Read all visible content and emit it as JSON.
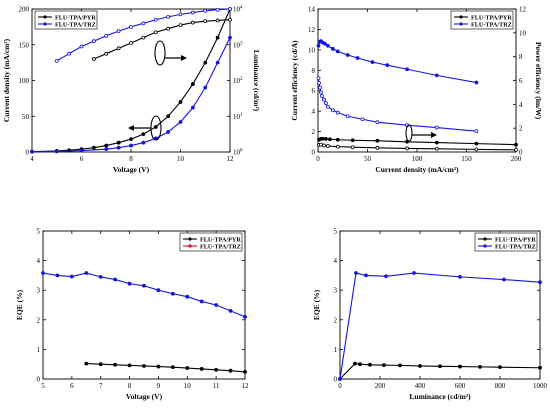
{
  "chart_data": [
    {
      "type": "line",
      "xlabel": "Voltage (V)",
      "ylabel": "Current density (mA/cm²)",
      "y2label": "Luminance (cd/m²)",
      "xlim": [
        4,
        12
      ],
      "ylim": [
        0,
        200
      ],
      "xticks": [
        "4",
        "6",
        "8",
        "10",
        "12"
      ],
      "yticks": [
        "0",
        "50",
        "100",
        "150",
        "200"
      ],
      "y2ticks_exp": [
        "0",
        "1",
        "2",
        "3",
        "4"
      ],
      "legend": [
        "FLU-TPA/PYR",
        "FLU-TPA/TRZ"
      ],
      "legend_position": "top-left",
      "series": [
        {
          "name": "FLU-TPA/PYR",
          "axis": "left",
          "filled": true,
          "color": "#000000",
          "x": [
            4.0,
            5.0,
            5.5,
            6.0,
            6.5,
            7.0,
            7.5,
            8.0,
            8.5,
            9.0,
            9.5,
            10.0,
            10.5,
            11.0,
            11.5,
            12.0
          ],
          "y": [
            0.5,
            1.5,
            2.5,
            4,
            6,
            9,
            13,
            18,
            25,
            35,
            50,
            70,
            95,
            125,
            160,
            200
          ]
        },
        {
          "name": "FLU-TPA/PYR",
          "axis": "right",
          "filled": false,
          "color": "#000000",
          "x": [
            6.5,
            7.0,
            7.5,
            8.0,
            8.5,
            9.0,
            9.5,
            10.0,
            10.5,
            11.0,
            11.5,
            12.0
          ],
          "y": [
            2.6,
            2.75,
            2.9,
            3.05,
            3.2,
            3.35,
            3.45,
            3.55,
            3.62,
            3.66,
            3.68,
            3.7
          ]
        },
        {
          "name": "FLU-TPA/TRZ",
          "axis": "left",
          "filled": true,
          "color": "#1515e0",
          "x": [
            4.0,
            5.0,
            6.0,
            7.0,
            7.5,
            8.0,
            8.5,
            9.0,
            9.5,
            10.0,
            10.5,
            11.0,
            11.5,
            12.0
          ],
          "y": [
            0.3,
            0.8,
            2,
            4,
            6,
            9,
            13,
            19,
            28,
            42,
            62,
            90,
            125,
            160
          ]
        },
        {
          "name": "FLU-TPA/TRZ",
          "axis": "right",
          "filled": false,
          "color": "#1515e0",
          "x": [
            5.0,
            5.5,
            6.0,
            6.5,
            7.0,
            7.5,
            8.0,
            8.5,
            9.0,
            9.5,
            10.0,
            10.5,
            11.0,
            11.5,
            12.0
          ],
          "y": [
            2.55,
            2.75,
            2.95,
            3.1,
            3.25,
            3.38,
            3.5,
            3.6,
            3.7,
            3.78,
            3.85,
            3.9,
            3.95,
            3.98,
            4.0
          ]
        }
      ]
    },
    {
      "type": "line",
      "xlabel": "Current density (mA/cm²)",
      "ylabel": "Current efficiency (cd/A)",
      "y2label": "Power efficiency (lm/W)",
      "xlim": [
        0,
        200
      ],
      "ylim": [
        0,
        14
      ],
      "y2lim": [
        0,
        12
      ],
      "xticks": [
        "0",
        "50",
        "100",
        "150",
        "200"
      ],
      "yticks": [
        "0",
        "2",
        "4",
        "6",
        "8",
        "10",
        "12",
        "14"
      ],
      "y2ticks": [
        "0",
        "2",
        "4",
        "6",
        "8",
        "10",
        "12"
      ],
      "legend": [
        "FLU-TPA/PYR",
        "FLU-TPA/TRZ"
      ],
      "legend_position": "top-right",
      "series": [
        {
          "name": "FLU-TPA/PYR",
          "axis": "left",
          "filled": true,
          "color": "#000000",
          "x": [
            1,
            3,
            5,
            8,
            12,
            20,
            35,
            60,
            90,
            120,
            160,
            200
          ],
          "y": [
            1.2,
            1.3,
            1.3,
            1.28,
            1.25,
            1.2,
            1.15,
            1.1,
            1.0,
            0.92,
            0.82,
            0.72
          ]
        },
        {
          "name": "FLU-TPA/PYR",
          "axis": "right",
          "filled": false,
          "color": "#000000",
          "x": [
            1,
            3,
            6,
            10,
            20,
            35,
            60,
            90,
            120,
            160,
            200
          ],
          "y": [
            0.6,
            0.62,
            0.55,
            0.5,
            0.45,
            0.4,
            0.35,
            0.3,
            0.27,
            0.22,
            0.18
          ]
        },
        {
          "name": "FLU-TPA/TRZ",
          "axis": "left",
          "filled": true,
          "color": "#1515e0",
          "x": [
            0.5,
            2,
            3,
            5,
            7,
            10,
            15,
            20,
            30,
            40,
            55,
            70,
            90,
            120,
            160
          ],
          "y": [
            10.4,
            10.8,
            10.85,
            10.7,
            10.6,
            10.4,
            10.1,
            9.85,
            9.5,
            9.2,
            8.8,
            8.5,
            8.1,
            7.5,
            6.8
          ]
        },
        {
          "name": "FLU-TPA/TRZ",
          "axis": "right",
          "filled": false,
          "color": "#1515e0",
          "x": [
            0.5,
            1,
            2,
            3,
            4,
            6,
            8,
            10,
            15,
            20,
            30,
            45,
            60,
            90,
            120,
            160
          ],
          "y": [
            6.2,
            5.8,
            5.4,
            5.0,
            4.7,
            4.4,
            4.1,
            3.8,
            3.5,
            3.3,
            3.0,
            2.75,
            2.5,
            2.25,
            2.05,
            1.75
          ]
        }
      ]
    },
    {
      "type": "line",
      "xlabel": "Voltage (V)",
      "ylabel": "EQE (%)",
      "xlim": [
        5,
        12
      ],
      "ylim": [
        0,
        5
      ],
      "xticks": [
        "5",
        "6",
        "7",
        "8",
        "9",
        "10",
        "11",
        "12"
      ],
      "yticks": [
        "0",
        "1",
        "2",
        "3",
        "4",
        "5"
      ],
      "legend": [
        "FLU-TPA/PYR",
        "FLU-TPA/TRZ"
      ],
      "legend_colors": [
        "#000000",
        "#e01010"
      ],
      "legend_position": "top-right",
      "series": [
        {
          "name": "FLU-TPA/PYR",
          "color": "#000000",
          "x": [
            6.5,
            7.0,
            7.5,
            8.0,
            8.5,
            9.0,
            9.5,
            10.0,
            10.5,
            11.0,
            11.5,
            12.0
          ],
          "y": [
            0.52,
            0.5,
            0.48,
            0.46,
            0.44,
            0.42,
            0.4,
            0.37,
            0.34,
            0.31,
            0.28,
            0.24
          ]
        },
        {
          "name": "",
          "color": "#1515e0",
          "x": [
            5.0,
            5.5,
            6.0,
            6.5,
            7.0,
            7.5,
            8.0,
            8.5,
            9.0,
            9.5,
            10.0,
            10.5,
            11.0,
            11.5,
            12.0
          ],
          "y": [
            3.58,
            3.5,
            3.46,
            3.58,
            3.45,
            3.36,
            3.22,
            3.15,
            3.0,
            2.88,
            2.78,
            2.62,
            2.5,
            2.3,
            2.1
          ]
        }
      ]
    },
    {
      "type": "line",
      "xlabel": "Luminance (cd/m²)",
      "ylabel": "EQE (%)",
      "xlim": [
        0,
        1000
      ],
      "ylim": [
        0,
        5
      ],
      "xticks": [
        "0",
        "200",
        "400",
        "600",
        "800",
        "1000"
      ],
      "yticks": [
        "0",
        "1",
        "2",
        "3",
        "4",
        "5"
      ],
      "legend": [
        "FLU-TPA/PYR",
        "FLU-TPA/TRZ"
      ],
      "legend_position": "top-right",
      "series": [
        {
          "name": "FLU-TPA/PYR",
          "color": "#000000",
          "x": [
            0,
            75,
            100,
            150,
            220,
            300,
            400,
            500,
            600,
            700,
            800,
            1000
          ],
          "y": [
            0.0,
            0.52,
            0.5,
            0.48,
            0.47,
            0.46,
            0.44,
            0.43,
            0.42,
            0.41,
            0.4,
            0.38
          ]
        },
        {
          "name": "FLU-TPA/TRZ",
          "color": "#1515e0",
          "x": [
            0,
            80,
            130,
            230,
            370,
            600,
            820,
            1000
          ],
          "y": [
            0.0,
            3.58,
            3.5,
            3.47,
            3.58,
            3.45,
            3.36,
            3.27
          ]
        }
      ]
    }
  ]
}
